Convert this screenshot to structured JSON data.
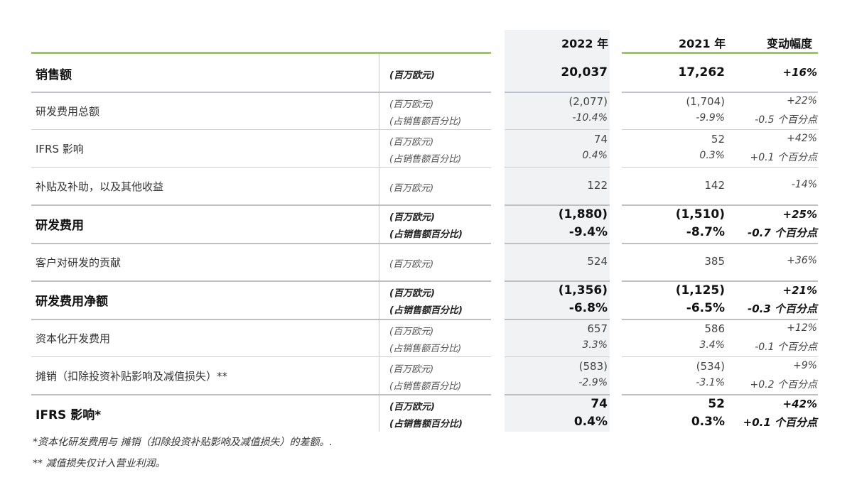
{
  "header": {
    "col_2022": "2022 年",
    "col_2021": "2021 年",
    "col_change": "变动幅度"
  },
  "rows": [
    {
      "label": "销售额",
      "bold": true,
      "units": [
        "(百万欧元)"
      ],
      "v2022": [
        "20,037"
      ],
      "v2021": [
        "17,262"
      ],
      "change": [
        "+16%"
      ]
    },
    {
      "label": "研发费用总额",
      "bold": false,
      "units": [
        "(百万欧元)",
        "(占销售额百分比)"
      ],
      "v2022": [
        "(2,077)",
        "-10.4%"
      ],
      "v2021": [
        "(1,704)",
        "-9.9%"
      ],
      "change": [
        "+22%",
        "-0.5 个百分点"
      ]
    },
    {
      "label": "IFRS 影响",
      "bold": false,
      "units": [
        "(百万欧元)",
        "(占销售额百分比)"
      ],
      "v2022": [
        "74",
        "0.4%"
      ],
      "v2021": [
        "52",
        "0.3%"
      ],
      "change": [
        "+42%",
        "+0.1 个百分点"
      ]
    },
    {
      "label": "补贴及补助，以及其他收益",
      "bold": false,
      "units": [
        "(百万欧元)"
      ],
      "v2022": [
        "122"
      ],
      "v2021": [
        "142"
      ],
      "change": [
        "-14%"
      ]
    },
    {
      "label": "研发费用",
      "bold": true,
      "units": [
        "(百万欧元)",
        "(占销售额百分比)"
      ],
      "v2022": [
        "(1,880)",
        "-9.4%"
      ],
      "v2021": [
        "(1,510)",
        "-8.7%"
      ],
      "change": [
        "+25%",
        "-0.7 个百分点"
      ]
    },
    {
      "label": "客户对研发的贡献",
      "bold": false,
      "units": [
        "(百万欧元)"
      ],
      "v2022": [
        "524"
      ],
      "v2021": [
        "385"
      ],
      "change": [
        "+36%"
      ]
    },
    {
      "label": "研发费用净额",
      "bold": true,
      "units": [
        "(百万欧元)",
        "(占销售额百分比)"
      ],
      "v2022": [
        "(1,356)",
        "-6.8%"
      ],
      "v2021": [
        "(1,125)",
        "-6.5%"
      ],
      "change": [
        "+21%",
        "-0.3 个百分点"
      ]
    },
    {
      "label": "资本化开发费用",
      "bold": false,
      "units": [
        "(百万欧元)",
        "(占销售额百分比)"
      ],
      "v2022": [
        "657",
        "3.3%"
      ],
      "v2021": [
        "586",
        "3.4%"
      ],
      "change": [
        "+12%",
        "-0.1 个百分点"
      ]
    },
    {
      "label": "摊销（扣除投资补贴影响及减值损失）**",
      "bold": false,
      "units": [
        "(百万欧元)",
        "(占销售额百分比)"
      ],
      "v2022": [
        "(583)",
        "-2.9%"
      ],
      "v2021": [
        "(534)",
        "-3.1%"
      ],
      "change": [
        "+9%",
        "+0.2 个百分点"
      ]
    },
    {
      "label": "IFRS 影响*",
      "bold": true,
      "units": [
        "(百万欧元)",
        "(占销售额百分比)"
      ],
      "v2022": [
        "74",
        "0.4%"
      ],
      "v2021": [
        "52",
        "0.3%"
      ],
      "change": [
        "+42%",
        "+0.1 个百分点"
      ]
    }
  ],
  "footnotes": [
    "*资本化研发费用与 摊销（扣除投资补贴影响及减值损失）的差额。.",
    "** 减值损失仅计入营业利润。"
  ]
}
